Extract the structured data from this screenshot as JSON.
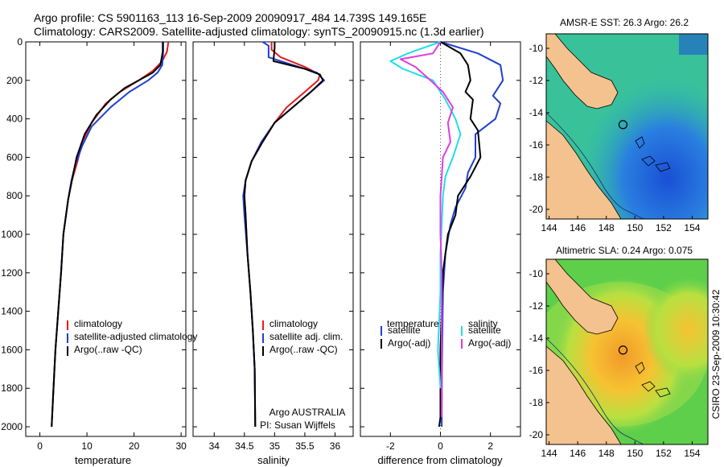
{
  "header": {
    "line1": "Argo profile: CS 5901163_113 16-Sep-2009 20090917_484 14.739S 149.165E",
    "line2": "Climatology: CARS2009. Satellite-adjusted climatology: synTS_20090915.nc (1.3d earlier)"
  },
  "colors": {
    "climatology": "#e41a1c",
    "satellite": "#1f3fd0",
    "argo": "#000000",
    "cyan": "#22dde8",
    "magenta": "#e03ce0",
    "sea_shallow": "#5ecf4a",
    "land": "#f4c28e"
  },
  "chart_data": [
    {
      "id": "temperature",
      "type": "line",
      "xlabel": "temperature",
      "ylabel": "",
      "xlim": [
        -3,
        31
      ],
      "ylim": [
        2050,
        0
      ],
      "xticks": [
        0,
        10,
        20,
        30
      ],
      "yticks": [
        0,
        200,
        400,
        600,
        800,
        1000,
        1200,
        1400,
        1600,
        1800,
        2000
      ],
      "ytick_labels": [
        "0",
        "200",
        "400",
        "600",
        "800",
        "1000",
        "1200",
        "1400",
        "1600",
        "1800",
        "2000"
      ],
      "legend": [
        "climatology",
        "satellite-adjusted climatology",
        "Argo(..raw -QC)"
      ],
      "legend_location": "lower-left",
      "series": [
        {
          "name": "climatology",
          "color": "#e41a1c",
          "x": [
            27.3,
            27,
            26,
            24,
            21,
            17,
            14,
            11,
            9,
            8,
            6.8,
            6,
            5,
            4.5,
            3.9,
            3.3,
            2.9,
            2.5
          ],
          "y": [
            0,
            50,
            100,
            150,
            200,
            260,
            320,
            420,
            520,
            620,
            720,
            820,
            1000,
            1200,
            1400,
            1600,
            1800,
            2000
          ]
        },
        {
          "name": "satellite-adjusted climatology",
          "color": "#1f3fd0",
          "x": [
            26.2,
            26.2,
            26,
            25,
            23,
            19,
            15,
            11,
            9,
            7.5,
            6.7,
            6,
            5,
            4.5,
            3.9,
            3.3,
            2.9,
            2.5
          ],
          "y": [
            0,
            50,
            120,
            160,
            200,
            260,
            340,
            440,
            540,
            640,
            720,
            820,
            1000,
            1200,
            1400,
            1600,
            1800,
            2000
          ]
        },
        {
          "name": "Argo(..raw -QC)",
          "color": "#000000",
          "x": [
            26.1,
            26.1,
            25.6,
            24,
            21,
            18,
            15,
            12,
            9.5,
            7.8,
            6.8,
            6,
            5,
            4.5,
            3.9,
            3.3,
            2.9,
            2.5
          ],
          "y": [
            0,
            50,
            120,
            160,
            200,
            240,
            300,
            380,
            480,
            600,
            720,
            820,
            1000,
            1200,
            1400,
            1600,
            1800,
            2000
          ]
        }
      ]
    },
    {
      "id": "salinity",
      "type": "line",
      "xlabel": "salinity",
      "xlim": [
        33.65,
        36.3
      ],
      "ylim": [
        2050,
        0
      ],
      "xticks": [
        34,
        34.5,
        35,
        35.5,
        36
      ],
      "xtick_labels": [
        "34",
        "34.5",
        "35",
        "35.5",
        "36"
      ],
      "legend": [
        "climatology",
        "satellite adj. clim.",
        "Argo(..raw -QC)"
      ],
      "legend_location": "lower-right",
      "annotations": [
        "Argo AUSTRALIA",
        "PI: Susan Wijffels"
      ],
      "series": [
        {
          "name": "climatology",
          "color": "#e41a1c",
          "x": [
            34.95,
            34.95,
            35.1,
            35.5,
            35.75,
            35.72,
            35.5,
            35.2,
            35.0,
            34.8,
            34.62,
            34.52,
            34.5,
            34.52,
            34.55,
            34.6,
            34.64,
            34.67,
            34.68
          ],
          "y": [
            0,
            40,
            80,
            130,
            170,
            200,
            260,
            340,
            420,
            520,
            620,
            720,
            800,
            900,
            1100,
            1300,
            1500,
            1700,
            2000
          ]
        },
        {
          "name": "satellite adj. clim.",
          "color": "#1f3fd0",
          "x": [
            34.8,
            34.9,
            34.9,
            35.4,
            35.7,
            35.82,
            35.6,
            35.3,
            35.0,
            34.78,
            34.62,
            34.52,
            34.48,
            34.5,
            34.55,
            34.6,
            34.64,
            34.67,
            34.68
          ],
          "y": [
            0,
            20,
            80,
            130,
            160,
            200,
            260,
            340,
            420,
            520,
            620,
            720,
            800,
            900,
            1100,
            1300,
            1500,
            1700,
            2000
          ]
        },
        {
          "name": "Argo(..raw -QC)",
          "color": "#000000",
          "x": [
            35.0,
            35.0,
            34.98,
            35.5,
            35.75,
            35.8,
            35.6,
            35.3,
            35.0,
            34.8,
            34.62,
            34.52,
            34.5,
            34.52,
            34.55,
            34.6,
            34.64,
            34.67,
            34.68
          ],
          "y": [
            0,
            30,
            100,
            140,
            170,
            200,
            260,
            340,
            420,
            520,
            620,
            720,
            800,
            900,
            1100,
            1300,
            1500,
            1700,
            2000
          ]
        }
      ]
    },
    {
      "id": "difference",
      "type": "line",
      "xlabel": "difference from climatology",
      "xlim": [
        -3.2,
        3.2
      ],
      "ylim": [
        2050,
        0
      ],
      "xticks": [
        -2,
        0,
        2
      ],
      "legend_headers": [
        "temperature",
        "salinity"
      ],
      "legend": [
        "satellite",
        "Argo(-adj)",
        "satellite",
        "Argo(-adj)"
      ],
      "legend_location": "lower-center",
      "series": [
        {
          "name": "temperature satellite",
          "color": "#1f3fd0",
          "x": [
            0,
            1.5,
            2.4,
            2.5,
            2.1,
            2.4,
            2.2,
            1.4,
            1.4,
            1.1,
            1.0,
            0.6,
            0.4,
            0.2,
            0.1,
            0.08,
            0.06,
            0.05
          ],
          "y": [
            0,
            60,
            120,
            200,
            280,
            320,
            400,
            480,
            600,
            680,
            760,
            860,
            950,
            1100,
            1300,
            1500,
            1700,
            2000
          ]
        },
        {
          "name": "temperature Argo(-adj)",
          "color": "#000000",
          "x": [
            0,
            0.8,
            1.1,
            1.2,
            1.0,
            1.3,
            1.2,
            1.5,
            1.6,
            1.2,
            0.7,
            0.6,
            0.3,
            0.1,
            0.05,
            0.0,
            0.0,
            0.0,
            -0.05
          ],
          "y": [
            0,
            60,
            120,
            200,
            260,
            300,
            400,
            460,
            600,
            700,
            800,
            900,
            1000,
            1200,
            1400,
            1600,
            1800,
            1950,
            2000
          ]
        },
        {
          "name": "salinity satellite",
          "color": "#22dde8",
          "x": [
            0,
            -1.3,
            -2,
            -1.5,
            -0.3,
            0.2,
            0.6,
            0.8,
            0.5,
            0.2,
            0.1,
            0.05,
            0.0,
            0.0,
            -0.1,
            0.0
          ],
          "y": [
            0,
            60,
            100,
            140,
            200,
            300,
            400,
            480,
            600,
            700,
            800,
            950,
            1100,
            1300,
            1600,
            1800
          ]
        },
        {
          "name": "salinity Argo(-adj)",
          "color": "#e03ce0",
          "x": [
            0,
            -0.3,
            -1.6,
            -1.0,
            -0.4,
            0.1,
            0.5,
            0.3,
            0.4,
            0.1,
            0.05,
            0.0,
            0.0,
            0.05,
            0.05,
            0.05
          ],
          "y": [
            0,
            60,
            90,
            130,
            200,
            260,
            340,
            420,
            520,
            600,
            700,
            800,
            1000,
            1200,
            1500,
            1950
          ]
        }
      ]
    },
    {
      "id": "sst-map",
      "type": "heatmap",
      "title": "AMSR-E SST: 26.3 Argo: 26.2",
      "xlim": [
        143.8,
        155.1
      ],
      "ylim": [
        -20.6,
        -9.1
      ],
      "xticks": [
        144,
        146,
        148,
        150,
        152,
        154
      ],
      "yticks": [
        -10,
        -12,
        -14,
        -16,
        -18,
        -20
      ],
      "argo_position": {
        "lon": 149.165,
        "lat": -14.739
      }
    },
    {
      "id": "sla-map",
      "type": "heatmap",
      "title": "Altimetric SLA: 0.24 Argo: 0.075",
      "xlim": [
        143.8,
        155.1
      ],
      "ylim": [
        -20.6,
        -9.1
      ],
      "xticks": [
        144,
        146,
        148,
        150,
        152,
        154
      ],
      "yticks": [
        -10,
        -12,
        -14,
        -16,
        -18,
        -20
      ],
      "argo_position": {
        "lon": 149.165,
        "lat": -14.739
      }
    }
  ],
  "legends": {
    "temperature": [
      "climatology",
      "satellite-adjusted climatology",
      "Argo(..raw -QC)"
    ],
    "salinity": [
      "climatology",
      "satellite adj. clim.",
      "Argo(..raw -QC)"
    ],
    "difference": {
      "temperature_header": "temperature",
      "salinity_header": "salinity",
      "t_sat": "satellite",
      "t_argo": "Argo(-adj)",
      "s_sat": "satellite",
      "s_argo": "Argo(-adj)"
    }
  },
  "annotation": {
    "line1": "Argo AUSTRALIA",
    "line2": "PI: Susan Wijffels"
  },
  "footer": {
    "credit": "CSIRO 23-Sep-2009 10:30:42"
  }
}
